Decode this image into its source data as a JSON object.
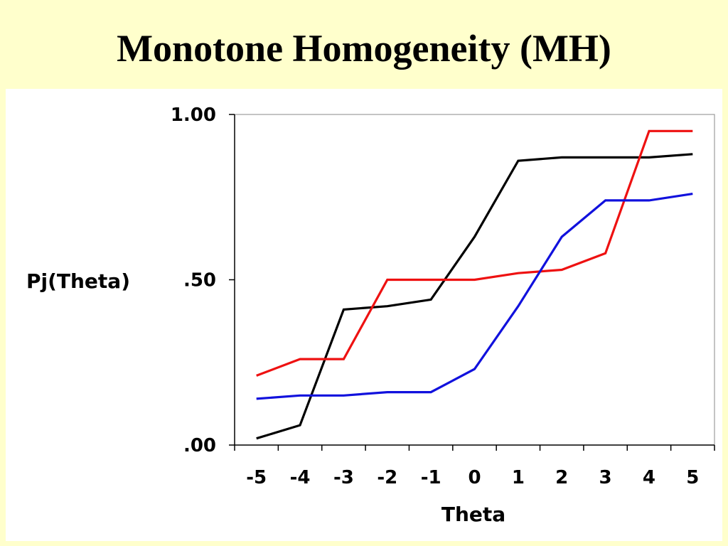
{
  "slide": {
    "title": "Monotone Homogeneity (MH)"
  },
  "chart_data": {
    "type": "line",
    "title": "Monotone Homogeneity (MH)",
    "xlabel": "Theta",
    "ylabel": "Pj(Theta)",
    "x": [
      -5,
      -4,
      -3,
      -2,
      -1,
      0,
      1,
      2,
      3,
      4,
      5
    ],
    "x_tick_labels": [
      "-5",
      "-4",
      "-3",
      "-2",
      "-1",
      "0",
      "1",
      "2",
      "3",
      "4",
      "5"
    ],
    "y_ticks": [
      0,
      0.5,
      1
    ],
    "y_tick_labels": [
      ".00",
      ".50",
      "1.00"
    ],
    "ylim": [
      0,
      1
    ],
    "grid": false,
    "legend": "none",
    "series": [
      {
        "color": "#000000",
        "values": [
          0.02,
          0.06,
          0.41,
          0.42,
          0.44,
          0.63,
          0.86,
          0.87,
          0.87,
          0.87,
          0.88
        ]
      },
      {
        "color": "#ee1111",
        "values": [
          0.21,
          0.26,
          0.26,
          0.5,
          0.5,
          0.5,
          0.52,
          0.53,
          0.58,
          0.95,
          0.95
        ]
      },
      {
        "color": "#1111dd",
        "values": [
          0.14,
          0.15,
          0.15,
          0.16,
          0.16,
          0.23,
          0.42,
          0.63,
          0.74,
          0.74,
          0.76
        ]
      }
    ]
  }
}
